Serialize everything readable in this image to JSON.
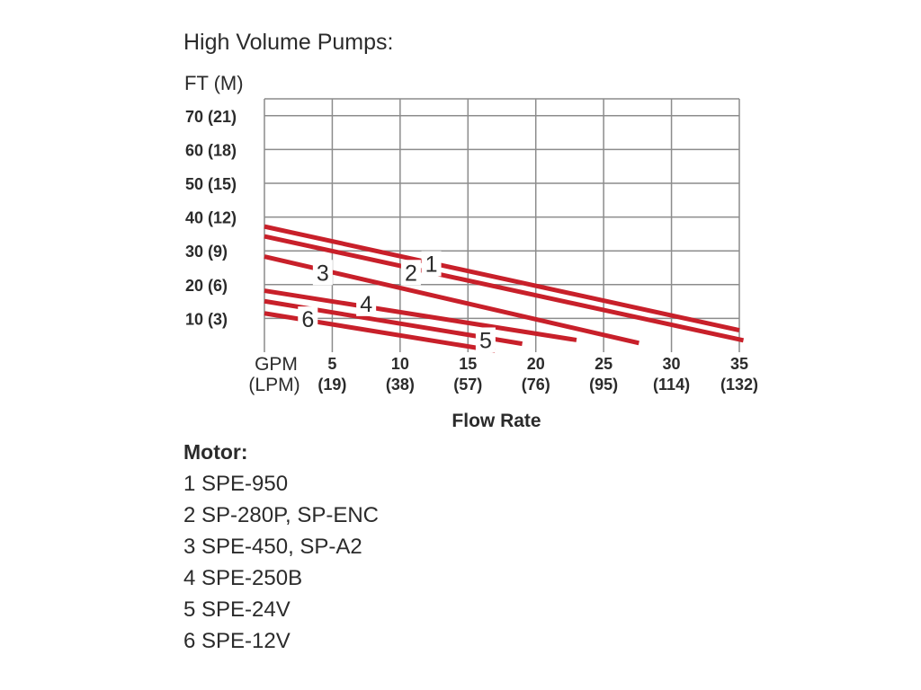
{
  "title": "High Volume Pumps:",
  "chart_data": {
    "type": "line",
    "y_unit_label": "FT (M)",
    "x_unit_label_primary": "GPM",
    "x_unit_label_secondary": "(LPM)",
    "xlabel": "Flow Rate",
    "xlim": [
      0,
      35
    ],
    "ylim": [
      0,
      70
    ],
    "grid": true,
    "x_ticks": [
      {
        "value": 5,
        "label": "5",
        "sub": "(19)"
      },
      {
        "value": 10,
        "label": "10",
        "sub": "(38)"
      },
      {
        "value": 15,
        "label": "15",
        "sub": "(57)"
      },
      {
        "value": 20,
        "label": "20",
        "sub": "(76)"
      },
      {
        "value": 25,
        "label": "25",
        "sub": "(95)"
      },
      {
        "value": 30,
        "label": "30",
        "sub": "(114)"
      },
      {
        "value": 35,
        "label": "35",
        "sub": "(132)"
      }
    ],
    "y_ticks": [
      {
        "value": 10,
        "label": "10 (3)"
      },
      {
        "value": 20,
        "label": "20 (6)"
      },
      {
        "value": 30,
        "label": "30 (9)"
      },
      {
        "value": 40,
        "label": "40 (12)"
      },
      {
        "value": 50,
        "label": "50 (15)"
      },
      {
        "value": 60,
        "label": "60 (18)"
      },
      {
        "value": 70,
        "label": "70 (21)"
      }
    ],
    "color": "#c8202a",
    "series": [
      {
        "name": "1",
        "x": [
          0,
          35
        ],
        "y": [
          37.2,
          6.5
        ],
        "label_at": [
          12.3,
          26.2
        ]
      },
      {
        "name": "2",
        "x": [
          0,
          35.3
        ],
        "y": [
          34.3,
          3.5
        ],
        "label_at": [
          10.8,
          23.6
        ]
      },
      {
        "name": "3",
        "x": [
          0,
          27.6
        ],
        "y": [
          28.3,
          2.7
        ],
        "label_at": [
          4.3,
          23.6
        ]
      },
      {
        "name": "4",
        "x": [
          0,
          23
        ],
        "y": [
          18.2,
          3.6
        ],
        "label_at": [
          7.5,
          14.4
        ]
      },
      {
        "name": "5",
        "x": [
          0,
          19
        ],
        "y": [
          15.1,
          2.5
        ],
        "label_at": [
          16.3,
          3.6
        ]
      },
      {
        "name": "6",
        "x": [
          0,
          17
        ],
        "y": [
          11.5,
          0.4
        ],
        "label_at": [
          3.2,
          9.8
        ]
      }
    ]
  },
  "legend": {
    "heading": "Motor:",
    "items": [
      "1 SPE-950",
      "2 SP-280P, SP-ENC",
      "3 SPE-450, SP-A2",
      "4 SPE-250B",
      "5 SPE-24V",
      "6 SPE-12V"
    ]
  }
}
